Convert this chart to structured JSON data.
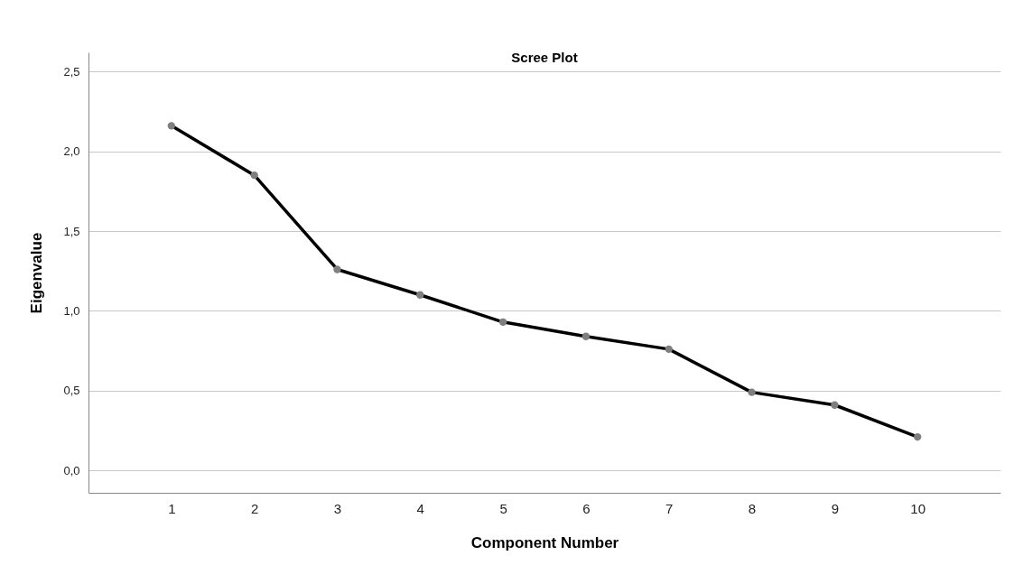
{
  "chart_data": {
    "type": "line",
    "title": "Scree Plot",
    "xlabel": "Component Number",
    "ylabel": "Eigenvalue",
    "categories": [
      "1",
      "2",
      "3",
      "4",
      "5",
      "6",
      "7",
      "8",
      "9",
      "10"
    ],
    "series": [
      {
        "color": "#000000",
        "values": [
          2.16,
          1.85,
          1.26,
          1.1,
          0.93,
          0.84,
          0.76,
          0.49,
          0.41,
          0.21
        ]
      }
    ],
    "ylim": [
      -0.14,
      2.62
    ],
    "yticks": [
      {
        "value": 0,
        "label": "0,0"
      },
      {
        "value": 0.5,
        "label": "0,5"
      },
      {
        "value": 1,
        "label": "1,0"
      },
      {
        "value": 1.5,
        "label": "1,5"
      },
      {
        "value": 2,
        "label": "2,0"
      },
      {
        "value": 2.5,
        "label": "2,5"
      }
    ],
    "grid": "y",
    "marker": "circle",
    "line_style": "solid"
  }
}
